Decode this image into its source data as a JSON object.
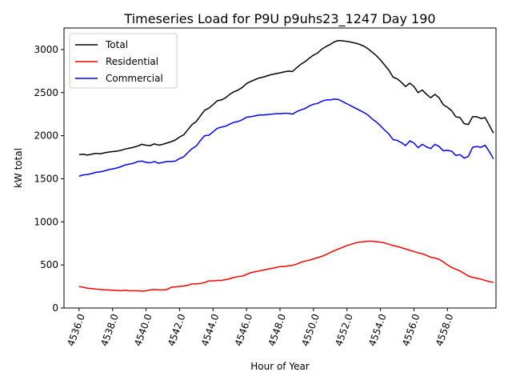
{
  "chart_data": {
    "type": "line",
    "title": "Timeseries Load for P9U p9uhs23_1247  Day 190",
    "xlabel": "Hour of Year",
    "ylabel": "kW total",
    "xlim": [
      4535.1,
      4560.9
    ],
    "ylim": [
      0,
      3250
    ],
    "xticks": [
      4536.0,
      4538.0,
      4540.0,
      4542.0,
      4544.0,
      4546.0,
      4548.0,
      4550.0,
      4552.0,
      4554.0,
      4556.0,
      4558.0
    ],
    "xtick_labels": [
      "4536.0",
      "4538.0",
      "4540.0",
      "4542.0",
      "4544.0",
      "4546.0",
      "4548.0",
      "4550.0",
      "4552.0",
      "4554.0",
      "4556.0",
      "4558.0"
    ],
    "yticks": [
      0,
      500,
      1000,
      1500,
      2000,
      2500,
      3000
    ],
    "ytick_labels": [
      "0",
      "500",
      "1000",
      "1500",
      "2000",
      "2500",
      "3000"
    ],
    "legend_position": "top-left",
    "x_start": 4536.0,
    "x_step": 0.25,
    "series": [
      {
        "name": "Total",
        "color": "#000000",
        "values": [
          1780,
          1785,
          1775,
          1785,
          1795,
          1790,
          1800,
          1810,
          1815,
          1820,
          1830,
          1845,
          1855,
          1865,
          1880,
          1900,
          1890,
          1885,
          1905,
          1890,
          1900,
          1915,
          1930,
          1950,
          1985,
          2010,
          2070,
          2130,
          2165,
          2230,
          2295,
          2320,
          2360,
          2405,
          2415,
          2440,
          2480,
          2510,
          2530,
          2560,
          2605,
          2630,
          2650,
          2670,
          2680,
          2695,
          2710,
          2720,
          2730,
          2740,
          2750,
          2745,
          2790,
          2830,
          2860,
          2900,
          2935,
          2960,
          3005,
          3035,
          3060,
          3090,
          3105,
          3100,
          3095,
          3085,
          3075,
          3060,
          3040,
          3010,
          2970,
          2930,
          2880,
          2820,
          2760,
          2680,
          2660,
          2620,
          2570,
          2610,
          2570,
          2500,
          2530,
          2480,
          2440,
          2480,
          2440,
          2360,
          2330,
          2290,
          2220,
          2210,
          2140,
          2130,
          2220,
          2220,
          2200,
          2210,
          2120,
          2030
        ]
      },
      {
        "name": "Residential",
        "color": "#ff0000",
        "values": [
          250,
          240,
          230,
          225,
          220,
          215,
          210,
          210,
          205,
          205,
          200,
          205,
          200,
          200,
          200,
          195,
          200,
          210,
          215,
          210,
          210,
          215,
          240,
          245,
          250,
          255,
          265,
          280,
          280,
          285,
          295,
          315,
          315,
          320,
          320,
          330,
          340,
          355,
          365,
          370,
          390,
          410,
          420,
          430,
          440,
          450,
          460,
          470,
          480,
          480,
          490,
          495,
          510,
          530,
          545,
          555,
          570,
          585,
          600,
          620,
          645,
          665,
          685,
          705,
          725,
          740,
          755,
          765,
          770,
          775,
          775,
          770,
          765,
          755,
          740,
          725,
          715,
          700,
          685,
          670,
          655,
          640,
          630,
          610,
          590,
          580,
          565,
          535,
          500,
          470,
          450,
          430,
          400,
          370,
          355,
          345,
          335,
          320,
          305,
          300
        ]
      },
      {
        "name": "Commercial",
        "color": "#0000ff",
        "values": [
          1530,
          1545,
          1550,
          1560,
          1575,
          1580,
          1590,
          1605,
          1615,
          1625,
          1640,
          1660,
          1670,
          1680,
          1700,
          1705,
          1690,
          1685,
          1700,
          1680,
          1690,
          1700,
          1700,
          1705,
          1735,
          1755,
          1805,
          1850,
          1880,
          1945,
          2000,
          2005,
          2045,
          2085,
          2100,
          2110,
          2135,
          2155,
          2165,
          2185,
          2215,
          2220,
          2230,
          2240,
          2240,
          2245,
          2250,
          2255,
          2255,
          2260,
          2260,
          2250,
          2280,
          2300,
          2315,
          2345,
          2365,
          2375,
          2400,
          2415,
          2415,
          2425,
          2420,
          2395,
          2370,
          2345,
          2320,
          2295,
          2270,
          2240,
          2195,
          2160,
          2115,
          2065,
          2020,
          1955,
          1945,
          1920,
          1885,
          1940,
          1915,
          1860,
          1900,
          1870,
          1850,
          1900,
          1875,
          1825,
          1830,
          1820,
          1770,
          1780,
          1740,
          1760,
          1865,
          1875,
          1865,
          1890,
          1815,
          1730
        ]
      }
    ]
  }
}
